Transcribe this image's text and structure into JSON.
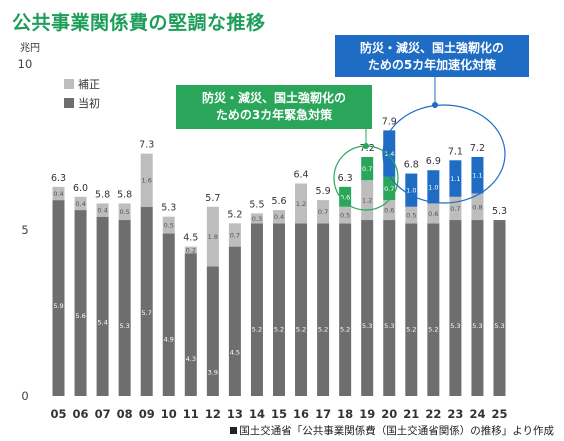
{
  "title": "公共事業関係費の堅調な推移",
  "source": "国土交通省「公共事業関係費（国土交通省関係）の推移」より作成",
  "chart_data": {
    "type": "bar",
    "stacked": true,
    "unit_label": "兆円",
    "ylim": [
      0,
      10
    ],
    "yticks": [
      0,
      5,
      10
    ],
    "grid": false,
    "categories": [
      "05",
      "06",
      "07",
      "08",
      "09",
      "10",
      "11",
      "12",
      "13",
      "14",
      "15",
      "16",
      "17",
      "18",
      "19",
      "20",
      "21",
      "22",
      "23",
      "24",
      "25"
    ],
    "series": [
      {
        "name": "当初",
        "color": "#6e6e6e",
        "values": [
          5.9,
          5.6,
          5.4,
          5.3,
          5.7,
          4.9,
          4.3,
          3.9,
          4.5,
          5.2,
          5.2,
          5.2,
          5.2,
          5.2,
          5.3,
          5.3,
          5.2,
          5.2,
          5.3,
          5.3,
          5.3
        ]
      },
      {
        "name": "補正",
        "color": "#bdbdbd",
        "values": [
          0.4,
          0.4,
          0.4,
          0.5,
          1.6,
          0.5,
          0.2,
          1.8,
          0.7,
          0.3,
          0.4,
          1.2,
          0.7,
          0.5,
          1.2,
          0.6,
          0.5,
          0.6,
          0.7,
          0.8,
          null
        ]
      },
      {
        "name": "",
        "color": "#2aa65a",
        "values": [
          null,
          null,
          null,
          null,
          null,
          null,
          null,
          null,
          null,
          null,
          null,
          null,
          null,
          0.6,
          0.7,
          0.7,
          null,
          null,
          null,
          null,
          null
        ]
      },
      {
        "name": "",
        "color": "#1f6cc4",
        "values": [
          null,
          null,
          null,
          null,
          null,
          null,
          null,
          null,
          null,
          null,
          null,
          null,
          null,
          null,
          null,
          1.4,
          1.0,
          1.0,
          1.1,
          1.1,
          null
        ]
      }
    ],
    "totals": [
      6.3,
      6.0,
      5.8,
      5.8,
      7.3,
      5.3,
      4.5,
      5.7,
      5.2,
      5.5,
      5.6,
      6.4,
      5.9,
      6.3,
      7.2,
      7.9,
      6.8,
      6.9,
      7.1,
      7.2,
      5.3
    ],
    "legend": {
      "position": "top-left",
      "items": [
        "補正",
        "当初"
      ]
    },
    "annotations": [
      {
        "text_line1": "防災・減災、国土強靭化の",
        "text_line2": "ための3カ年緊急対策",
        "color": "#2aa65a",
        "categories": [
          "18",
          "19",
          "20"
        ]
      },
      {
        "text_line1": "防災・減災、国土強靭化の",
        "text_line2": "ための5カ年加速化対策",
        "color": "#1f6cc4",
        "categories": [
          "20",
          "21",
          "22",
          "23",
          "24"
        ]
      }
    ]
  }
}
